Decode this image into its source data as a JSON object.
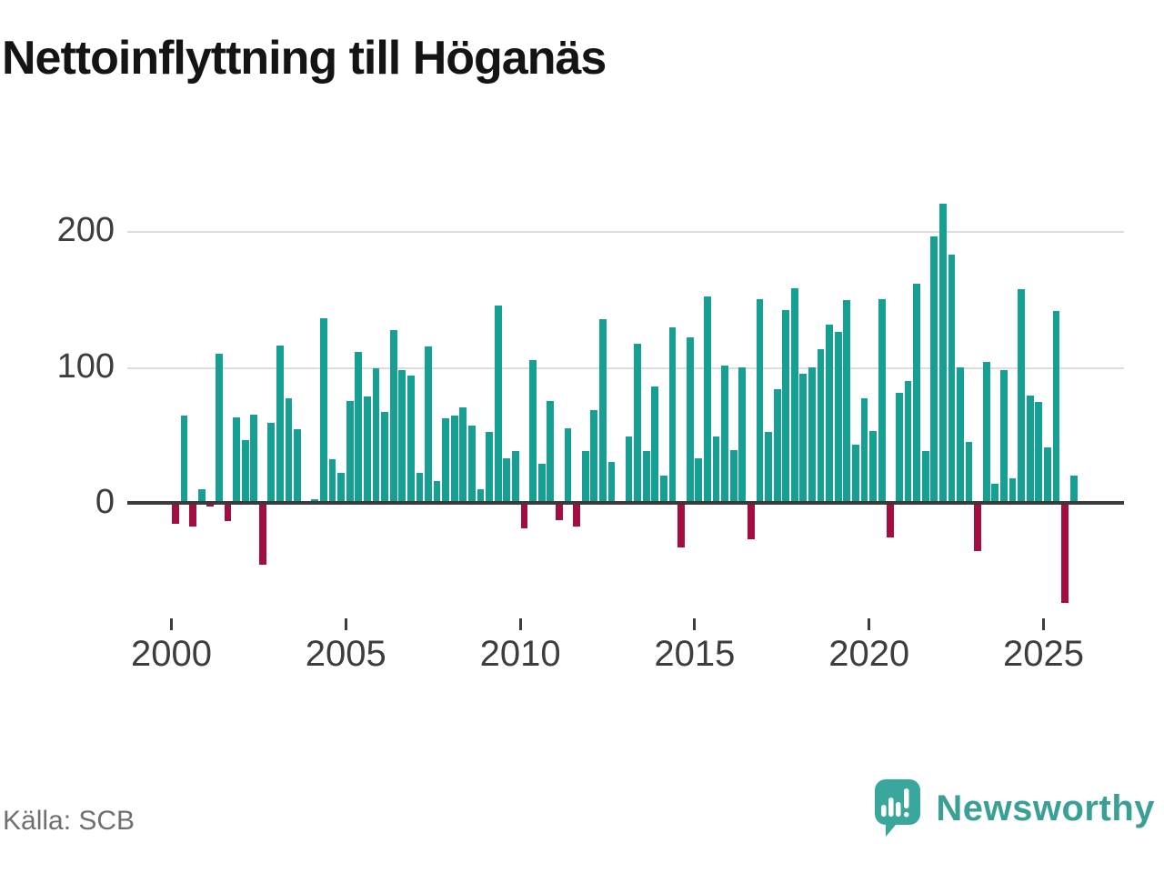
{
  "title": "Nettoinflyttning till Höganäs",
  "source": "Källa: SCB",
  "brand": {
    "name": "Newsworthy",
    "logo_icon": "newsworthy-speech-bubble-chart-icon"
  },
  "colors": {
    "positive_bar": "#16a093",
    "negative_bar": "#a40d3f",
    "axis": "#3a3a3a",
    "grid": "#dcdcdc",
    "tick_label": "#3d3d3d",
    "title_text": "#141414",
    "source_text": "#6f6f6f",
    "brand_teal": "#3aa79c"
  },
  "chart_data": {
    "type": "bar",
    "title": "Nettoinflyttning till Höganäs",
    "xlabel": "",
    "ylabel": "",
    "grid": "horizontal",
    "legend": "none",
    "frequency": "quarterly",
    "x_tick_labels": [
      "2000",
      "2005",
      "2010",
      "2015",
      "2020",
      "2025"
    ],
    "y_ticks": [
      0,
      100,
      200
    ],
    "y_tick_labels": [
      "0",
      "100",
      "200"
    ],
    "ylim": [
      -85,
      235
    ],
    "categories": [
      "2000 Q1",
      "2000 Q2",
      "2000 Q3",
      "2000 Q4",
      "2001 Q1",
      "2001 Q2",
      "2001 Q3",
      "2001 Q4",
      "2002 Q1",
      "2002 Q2",
      "2002 Q3",
      "2002 Q4",
      "2003 Q1",
      "2003 Q2",
      "2003 Q3",
      "2003 Q4",
      "2004 Q1",
      "2004 Q2",
      "2004 Q3",
      "2004 Q4",
      "2005 Q1",
      "2005 Q2",
      "2005 Q3",
      "2005 Q4",
      "2006 Q1",
      "2006 Q2",
      "2006 Q3",
      "2006 Q4",
      "2007 Q1",
      "2007 Q2",
      "2007 Q3",
      "2007 Q4",
      "2008 Q1",
      "2008 Q2",
      "2008 Q3",
      "2008 Q4",
      "2009 Q1",
      "2009 Q2",
      "2009 Q3",
      "2009 Q4",
      "2010 Q1",
      "2010 Q2",
      "2010 Q3",
      "2010 Q4",
      "2011 Q1",
      "2011 Q2",
      "2011 Q3",
      "2011 Q4",
      "2012 Q1",
      "2012 Q2",
      "2012 Q3",
      "2012 Q4",
      "2013 Q1",
      "2013 Q2",
      "2013 Q3",
      "2013 Q4",
      "2014 Q1",
      "2014 Q2",
      "2014 Q3",
      "2014 Q4",
      "2015 Q1",
      "2015 Q2",
      "2015 Q3",
      "2015 Q4",
      "2016 Q1",
      "2016 Q2",
      "2016 Q3",
      "2016 Q4",
      "2017 Q1",
      "2017 Q2",
      "2017 Q3",
      "2017 Q4",
      "2018 Q1",
      "2018 Q2",
      "2018 Q3",
      "2018 Q4",
      "2019 Q1",
      "2019 Q2",
      "2019 Q3",
      "2019 Q4",
      "2020 Q1",
      "2020 Q2",
      "2020 Q3",
      "2020 Q4",
      "2021 Q1",
      "2021 Q2",
      "2021 Q3",
      "2021 Q4",
      "2022 Q1",
      "2022 Q2",
      "2022 Q3",
      "2022 Q4",
      "2023 Q1",
      "2023 Q2",
      "2023 Q3",
      "2023 Q4",
      "2024 Q1",
      "2024 Q2",
      "2024 Q3",
      "2024 Q4",
      "2025 Q1",
      "2025 Q2",
      "2025 Q3",
      "2025 Q4"
    ],
    "values": [
      -15,
      64,
      -17,
      10,
      -2,
      110,
      -13,
      63,
      46,
      65,
      -45,
      59,
      116,
      77,
      54,
      0,
      3,
      136,
      32,
      22,
      75,
      111,
      78,
      99,
      67,
      127,
      98,
      94,
      22,
      115,
      16,
      62,
      64,
      70,
      57,
      10,
      52,
      145,
      33,
      38,
      -18,
      105,
      29,
      75,
      -12,
      55,
      -17,
      38,
      68,
      135,
      30,
      0,
      49,
      117,
      38,
      86,
      20,
      129,
      -32,
      122,
      33,
      152,
      49,
      101,
      39,
      100,
      -26,
      150,
      52,
      84,
      142,
      158,
      95,
      100,
      113,
      131,
      126,
      149,
      43,
      77,
      53,
      150,
      -25,
      81,
      90,
      161,
      38,
      196,
      220,
      183,
      100,
      45,
      -35,
      104,
      14,
      98,
      18,
      157,
      79,
      74,
      41,
      141,
      -73,
      20
    ]
  }
}
